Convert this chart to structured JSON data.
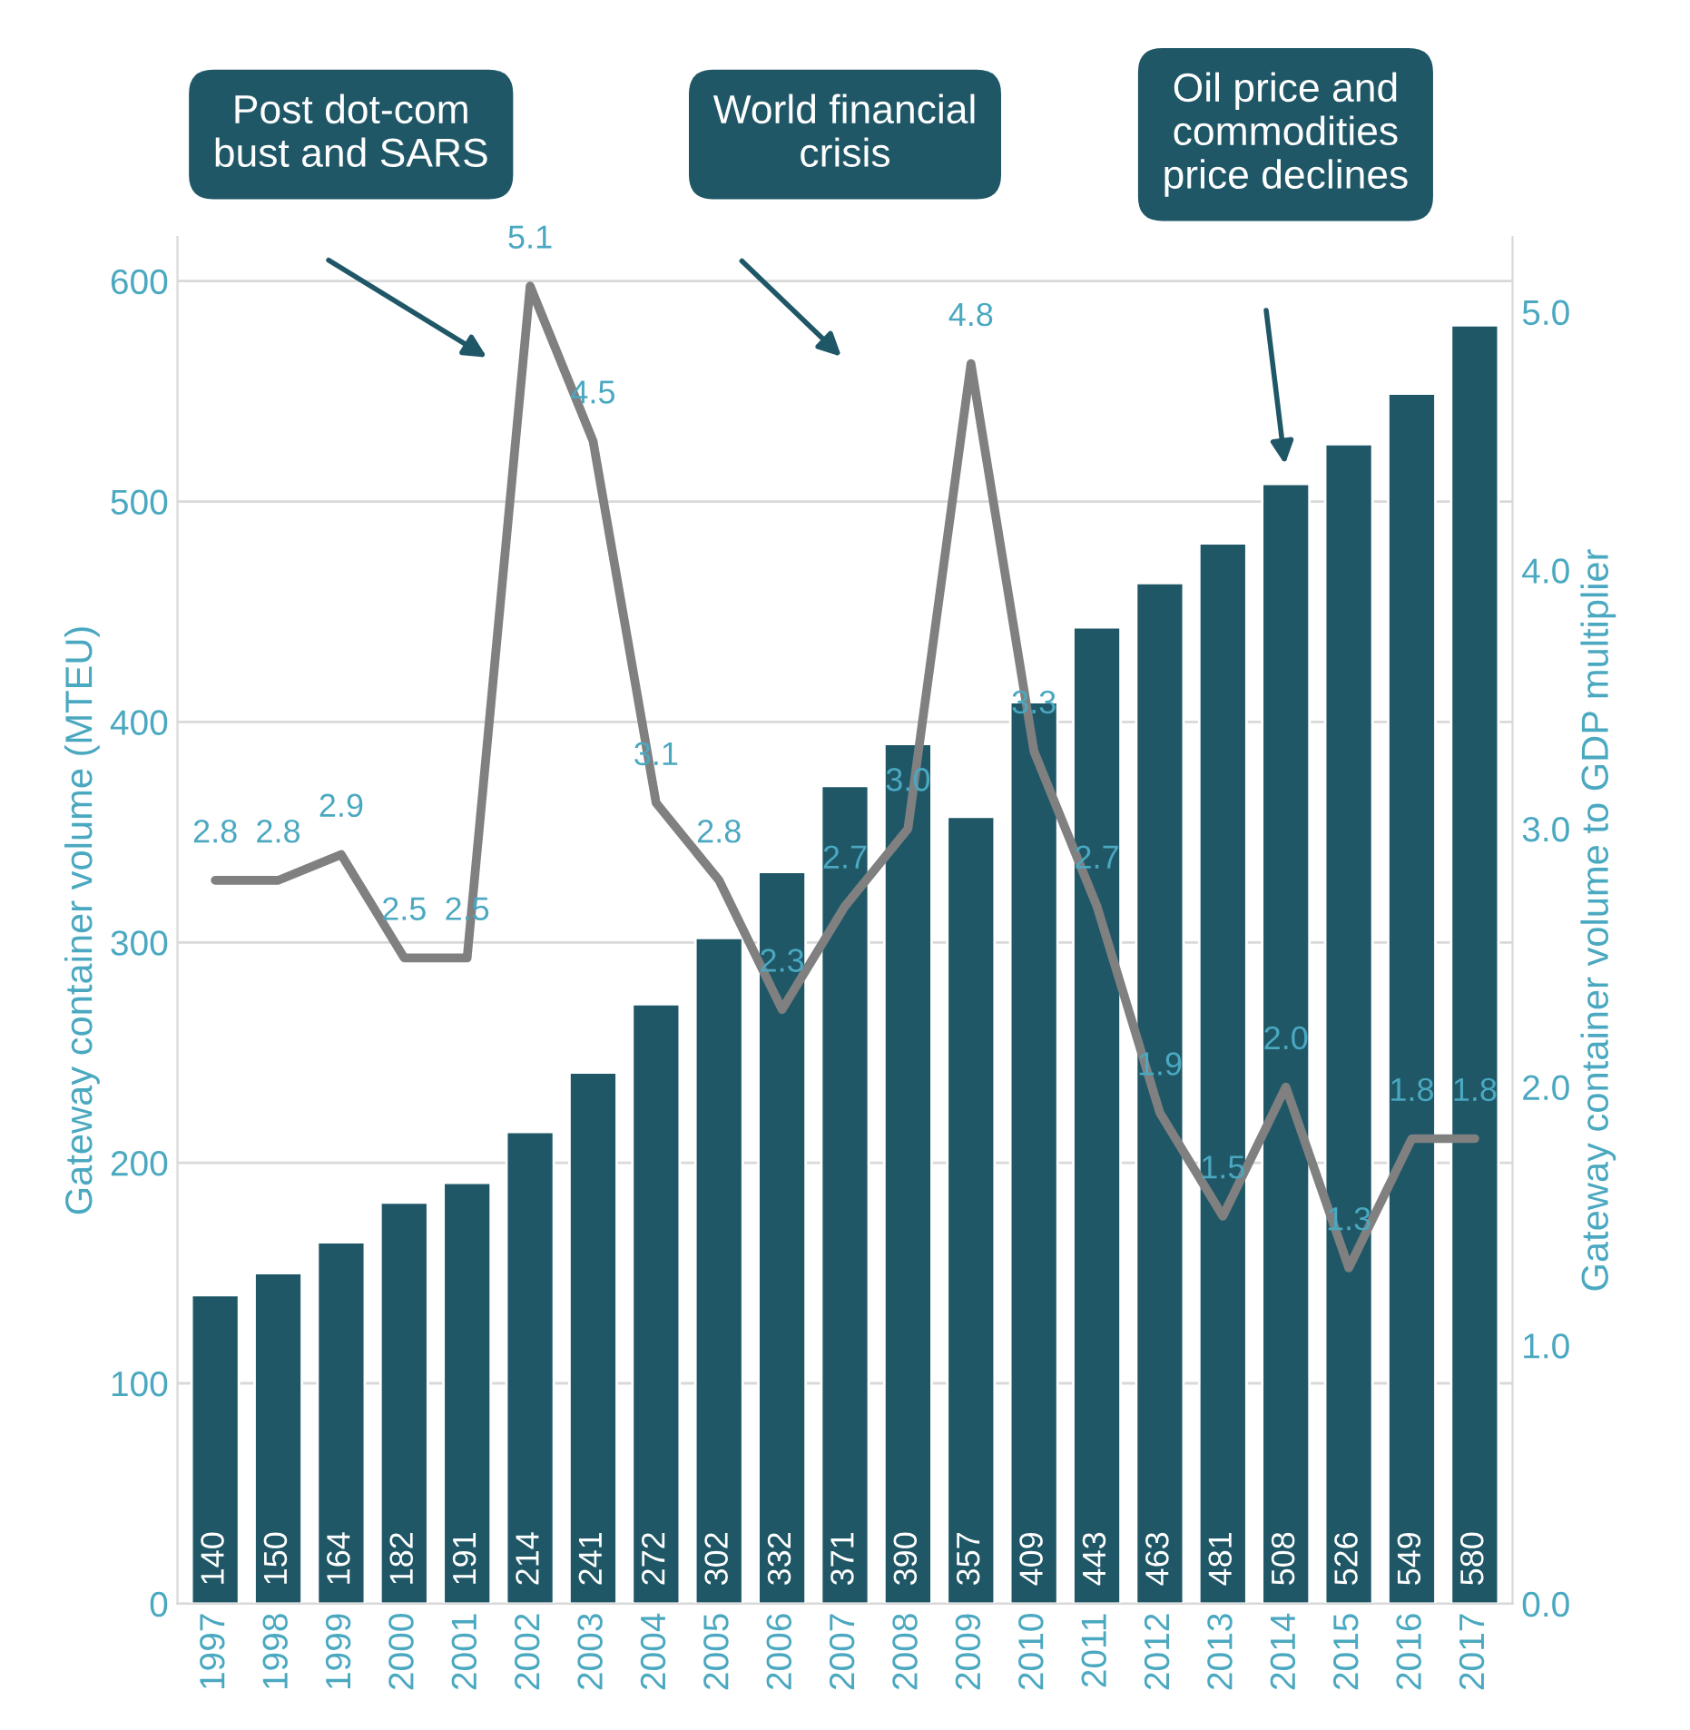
{
  "chart_data": {
    "type": "bar",
    "ylabel": "Gateway container volume (MTEU)",
    "y2label": "Gateway container volume to GDP multiplier",
    "categories": [
      "1997",
      "1998",
      "1999",
      "2000",
      "2001",
      "2002",
      "2003",
      "2004",
      "2005",
      "2006",
      "2007",
      "2008",
      "2009",
      "2010",
      "2011",
      "2012",
      "2013",
      "2014",
      "2015",
      "2016",
      "2017"
    ],
    "series": [
      {
        "color": "#1f5767",
        "values": [
          140,
          150,
          164,
          182,
          191,
          214,
          241,
          272,
          302,
          332,
          371,
          390,
          357,
          409,
          443,
          463,
          481,
          508,
          526,
          549,
          580
        ]
      },
      {
        "type": "line",
        "axis": "y2",
        "color": "#808080",
        "values": [
          2.8,
          2.8,
          2.9,
          2.5,
          2.5,
          5.1,
          4.5,
          3.1,
          2.8,
          2.3,
          2.7,
          3.0,
          4.8,
          3.3,
          2.7,
          1.9,
          1.5,
          2.0,
          1.3,
          1.8,
          1.8
        ],
        "value_labels": [
          "2.8",
          "2.8",
          "2.9",
          "2.5",
          "2.5",
          "5.1",
          "4.5",
          "3.1",
          "2.8",
          "2.3",
          "2.7",
          "3.0",
          "4.8",
          "3.3",
          "2.7",
          "1.9",
          "1.5",
          "2.0",
          "1.3",
          "1.8",
          "1.8"
        ]
      }
    ],
    "data_labels": true,
    "ylim": [
      0,
      620
    ],
    "yticks": [
      0,
      100,
      200,
      300,
      400,
      500,
      600
    ],
    "y2lim": [
      0,
      5.29
    ],
    "y2ticks": [
      {
        "value": 0,
        "label": "0.0"
      },
      {
        "value": 1,
        "label": "1.0"
      },
      {
        "value": 2,
        "label": "2.0"
      },
      {
        "value": 3,
        "label": "3.0"
      },
      {
        "value": 4,
        "label": "4.0"
      },
      {
        "value": 5,
        "label": "5.0"
      }
    ],
    "grid": "y",
    "legend": false,
    "marker": "none",
    "line_style": "solid",
    "annotations": [
      "Post dot-com\nbust and SARS",
      "World financial\ncrisis",
      "Oil price and\ncommodities\nprice declines"
    ]
  }
}
